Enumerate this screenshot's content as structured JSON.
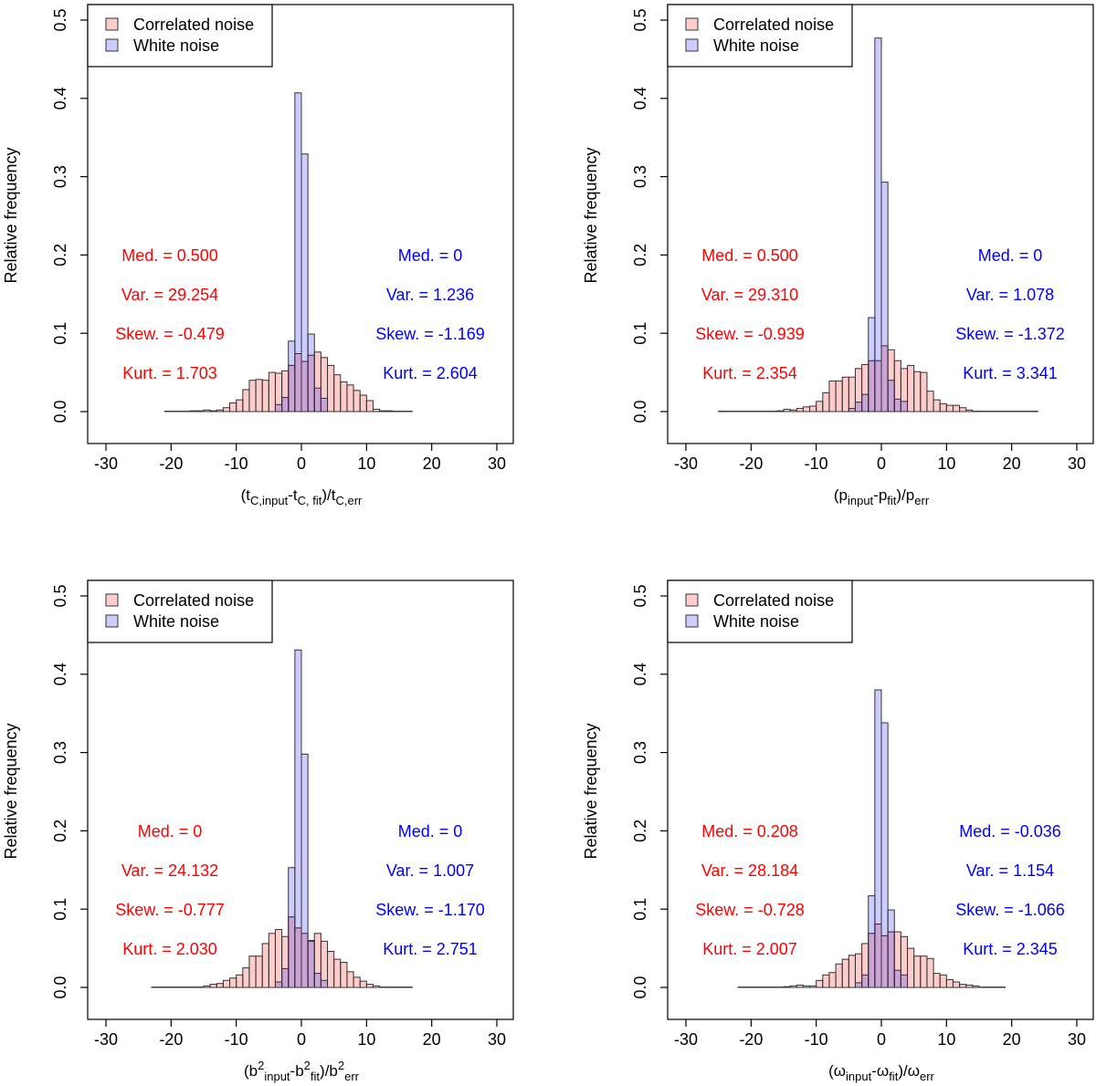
{
  "chart_data": [
    {
      "type": "bar",
      "ylabel": "Relative frequency",
      "xlabel_parts": [
        {
          "t": "(t"
        },
        {
          "sub": "C,input"
        },
        {
          "t": "-t"
        },
        {
          "sub": "C, fit"
        },
        {
          "t": ")/t"
        },
        {
          "sub": "C,err"
        }
      ],
      "xlim": [
        -30,
        30
      ],
      "ylim": [
        0,
        0.5
      ],
      "xticks": [
        "-30",
        "-20",
        "-10",
        "0",
        "10",
        "20",
        "30"
      ],
      "yticks": [
        "0.0",
        "0.1",
        "0.2",
        "0.3",
        "0.4",
        "0.5"
      ],
      "legend": {
        "placement": "top-left",
        "entries": [
          "Correlated noise",
          "White noise"
        ]
      },
      "series": [
        {
          "name": "Correlated noise",
          "color": "#ff0000",
          "bin_width": 1,
          "bin_start": -21,
          "values": [
            0.0005,
            0.0005,
            0.0005,
            0.0005,
            0.001,
            0.001,
            0.002,
            0.001,
            0.002,
            0.005,
            0.011,
            0.015,
            0.028,
            0.04,
            0.041,
            0.04,
            0.05,
            0.049,
            0.052,
            0.059,
            0.074,
            0.064,
            0.072,
            0.076,
            0.069,
            0.059,
            0.047,
            0.038,
            0.034,
            0.027,
            0.021,
            0.014,
            0.003,
            0.001,
            0.001,
            0.0005,
            0.0005,
            0.0005
          ],
          "stats": [
            "Med. = 0.500",
            "Var. = 29.254",
            "Skew. = -0.479",
            "Kurt. = 1.703"
          ]
        },
        {
          "name": "White noise",
          "color": "#0000ff",
          "bin_width": 1,
          "bin_start": -4,
          "values": [
            0.009,
            0.018,
            0.09,
            0.407,
            0.329,
            0.099,
            0.03,
            0.017
          ],
          "stats": [
            "Med. = 0",
            "Var. = 1.236",
            "Skew. = -1.169",
            "Kurt. = 2.604"
          ]
        }
      ]
    },
    {
      "type": "bar",
      "ylabel": "Relative frequency",
      "xlabel_parts": [
        {
          "t": "(p"
        },
        {
          "sub": "input"
        },
        {
          "t": "-p"
        },
        {
          "sub": "fit"
        },
        {
          "t": ")/p"
        },
        {
          "sub": "err"
        }
      ],
      "xlim": [
        -30,
        30
      ],
      "ylim": [
        0,
        0.5
      ],
      "xticks": [
        "-30",
        "-20",
        "-10",
        "0",
        "10",
        "20",
        "30"
      ],
      "yticks": [
        "0.0",
        "0.1",
        "0.2",
        "0.3",
        "0.4",
        "0.5"
      ],
      "legend": {
        "placement": "top-left",
        "entries": [
          "Correlated noise",
          "White noise"
        ]
      },
      "series": [
        {
          "name": "Correlated noise",
          "color": "#ff0000",
          "bin_width": 1,
          "bin_start": -25,
          "values": [
            0.0005,
            0.0005,
            0.0005,
            0.0005,
            0.0005,
            0.0005,
            0.0005,
            0.0005,
            0.0005,
            0.001,
            0.003,
            0.002,
            0.004,
            0.006,
            0.007,
            0.013,
            0.024,
            0.039,
            0.039,
            0.044,
            0.044,
            0.055,
            0.06,
            0.065,
            0.065,
            0.084,
            0.079,
            0.065,
            0.055,
            0.059,
            0.051,
            0.05,
            0.026,
            0.015,
            0.01,
            0.008,
            0.008,
            0.005,
            0.002,
            0.0005,
            0.0005,
            0.0005,
            0.0005,
            0.0005,
            0.0005,
            0.0005,
            0.0005,
            0.0005,
            0.0005
          ],
          "stats": [
            "Med. = 0.500",
            "Var. = 29.310",
            "Skew. = -0.939",
            "Kurt. = 2.354"
          ]
        },
        {
          "name": "White noise",
          "color": "#0000ff",
          "bin_width": 1,
          "bin_start": -5,
          "values": [
            0.004,
            0.012,
            0.022,
            0.12,
            0.477,
            0.293,
            0.04,
            0.016,
            0.013
          ],
          "stats": [
            "Med. = 0",
            "Var. = 1.078",
            "Skew. = -1.372",
            "Kurt. = 3.341"
          ]
        }
      ]
    },
    {
      "type": "bar",
      "ylabel": "Relative frequency",
      "xlabel_parts": [
        {
          "t": "(b"
        },
        {
          "sup": "2"
        },
        {
          "sub": "input"
        },
        {
          "t": "-b"
        },
        {
          "sup": "2"
        },
        {
          "sub": "fit"
        },
        {
          "t": ")/b"
        },
        {
          "sup": "2"
        },
        {
          "sub": "err"
        }
      ],
      "xlim": [
        -30,
        30
      ],
      "ylim": [
        0,
        0.5
      ],
      "xticks": [
        "-30",
        "-20",
        "-10",
        "0",
        "10",
        "20",
        "30"
      ],
      "yticks": [
        "0.0",
        "0.1",
        "0.2",
        "0.3",
        "0.4",
        "0.5"
      ],
      "legend": {
        "placement": "top-left",
        "entries": [
          "Correlated noise",
          "White noise"
        ]
      },
      "series": [
        {
          "name": "Correlated noise",
          "color": "#ff0000",
          "bin_width": 1,
          "bin_start": -23,
          "values": [
            0.0005,
            0.0005,
            0.0005,
            0.0005,
            0.0005,
            0.0005,
            0.0005,
            0.0005,
            0.002,
            0.004,
            0.005,
            0.009,
            0.012,
            0.016,
            0.025,
            0.04,
            0.04,
            0.056,
            0.069,
            0.074,
            0.065,
            0.09,
            0.076,
            0.069,
            0.06,
            0.069,
            0.059,
            0.046,
            0.036,
            0.032,
            0.02,
            0.013,
            0.008,
            0.004,
            0.002,
            0.0005,
            0.0005,
            0.0005,
            0.0005,
            0.0005
          ],
          "stats": [
            "Med. = 0",
            "Var. = 24.132",
            "Skew. = -0.777",
            "Kurt. = 2.030"
          ]
        },
        {
          "name": "White noise",
          "color": "#0000ff",
          "bin_width": 1,
          "bin_start": -4,
          "values": [
            0.007,
            0.024,
            0.153,
            0.431,
            0.298,
            0.059,
            0.018,
            0.009
          ],
          "stats": [
            "Med. = 0",
            "Var. = 1.007",
            "Skew. = -1.170",
            "Kurt. = 2.751"
          ]
        }
      ]
    },
    {
      "type": "bar",
      "ylabel": "Relative frequency",
      "xlabel_parts": [
        {
          "t": "(ω"
        },
        {
          "sub": "input"
        },
        {
          "t": "-ω"
        },
        {
          "sub": "fit"
        },
        {
          "t": ")/ω"
        },
        {
          "sub": "err"
        }
      ],
      "xlim": [
        -30,
        30
      ],
      "ylim": [
        0,
        0.5
      ],
      "xticks": [
        "-30",
        "-20",
        "-10",
        "0",
        "10",
        "20",
        "30"
      ],
      "yticks": [
        "0.0",
        "0.1",
        "0.2",
        "0.3",
        "0.4",
        "0.5"
      ],
      "legend": {
        "placement": "top-left",
        "entries": [
          "Correlated noise",
          "White noise"
        ]
      },
      "series": [
        {
          "name": "Correlated noise",
          "color": "#ff0000",
          "bin_width": 1,
          "bin_start": -22,
          "values": [
            0.0005,
            0.0005,
            0.0005,
            0.0005,
            0.0005,
            0.0005,
            0.0005,
            0.001,
            0.002,
            0.003,
            0.002,
            0.002,
            0.009,
            0.016,
            0.019,
            0.03,
            0.036,
            0.041,
            0.043,
            0.056,
            0.069,
            0.081,
            0.066,
            0.071,
            0.071,
            0.065,
            0.05,
            0.04,
            0.04,
            0.037,
            0.018,
            0.016,
            0.01,
            0.007,
            0.004,
            0.003,
            0.002,
            0.0005,
            0.0005,
            0.0005,
            0.0005
          ],
          "stats": [
            "Med. = 0.208",
            "Var. = 28.184",
            "Skew. = -0.728",
            "Kurt. = 2.007"
          ]
        },
        {
          "name": "White noise",
          "color": "#0000ff",
          "bin_width": 1,
          "bin_start": -4,
          "values": [
            0.006,
            0.016,
            0.117,
            0.38,
            0.338,
            0.099,
            0.022,
            0.016
          ],
          "stats": [
            "Med. = -0.036",
            "Var. = 1.154",
            "Skew. = -1.066",
            "Kurt. = 2.345"
          ]
        }
      ]
    }
  ]
}
